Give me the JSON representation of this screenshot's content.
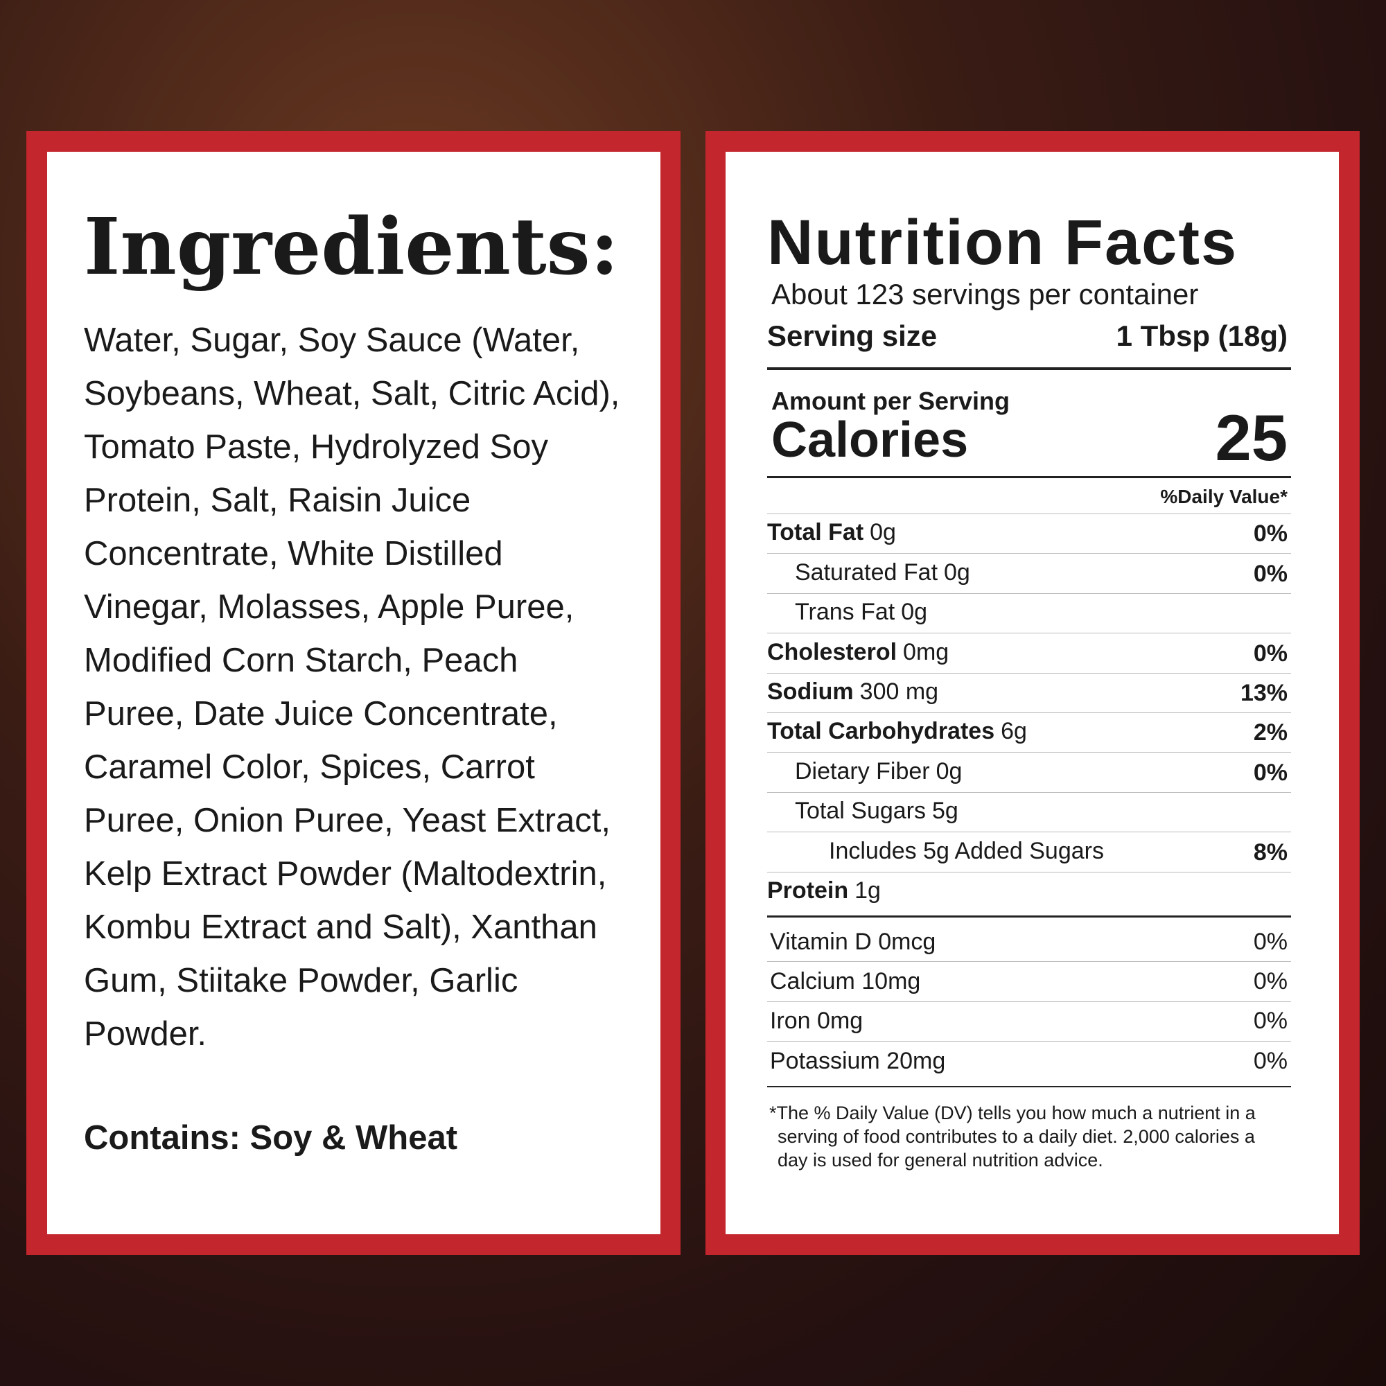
{
  "ingredients": {
    "title": "Ingredients:",
    "text": "Water, Sugar, Soy Sauce (Water, Soybeans, Wheat, Salt, Citric Acid), Tomato Paste, Hydrolyzed Soy Protein, Salt, Raisin Juice Concentrate, White Distilled Vinegar, Molasses, Apple Puree, Modified Corn Starch, Peach Puree, Date Juice Concentrate, Caramel Color, Spices, Carrot Puree, Onion Puree, Yeast Extract, Kelp Extract Powder (Maltodextrin, Kombu Extract and Salt), Xanthan Gum, Stiitake Powder, Garlic Powder.",
    "contains": "Contains: Soy & Wheat"
  },
  "nutrition": {
    "title": "Nutrition Facts",
    "servings": "About 123 servings per container",
    "serving_size_label": "Serving size",
    "serving_size": "1 Tbsp (18g)",
    "amount_per_serving": "Amount per Serving",
    "calories_label": "Calories",
    "calories": 25,
    "dv_header": "%Daily Value*",
    "nutrients": [
      {
        "name": "Total Fat",
        "amount": "0g",
        "dv": "0%",
        "bold": true,
        "indent": 0
      },
      {
        "name": "Saturated Fat",
        "amount": "0g",
        "dv": "0%",
        "bold": false,
        "indent": 1
      },
      {
        "name": "Trans Fat",
        "amount": "0g",
        "bold": false,
        "indent": 1
      },
      {
        "name": "Cholesterol",
        "amount": "0mg",
        "dv": "0%",
        "bold": true,
        "indent": 0
      },
      {
        "name": "Sodium",
        "amount": "300 mg",
        "dv": "13%",
        "bold": true,
        "indent": 0
      },
      {
        "name": "Total Carbohydrates",
        "amount": "6g",
        "dv": "2%",
        "bold": true,
        "indent": 0
      },
      {
        "name": "Dietary Fiber",
        "amount": "0g",
        "dv": "0%",
        "bold": false,
        "indent": 1
      },
      {
        "name": "Total Sugars",
        "amount": "5g",
        "bold": false,
        "indent": 1
      },
      {
        "name": "Includes 5g Added Sugars",
        "dv": "8%",
        "bold": false,
        "indent": 2
      },
      {
        "name": "Protein",
        "amount": "1g",
        "bold": true,
        "indent": 0
      }
    ],
    "vitamins": [
      {
        "label": "Vitamin D 0mcg",
        "dv": "0%"
      },
      {
        "label": "Calcium 10mg",
        "dv": "0%"
      },
      {
        "label": "Iron 0mg",
        "dv": "0%"
      },
      {
        "label": "Potassium 20mg",
        "dv": "0%"
      }
    ],
    "footnote": "*The % Daily Value (DV) tells you how much a nutrient in a serving of food contributes to a daily diet. 2,000 calories a day is used for general nutrition advice."
  }
}
